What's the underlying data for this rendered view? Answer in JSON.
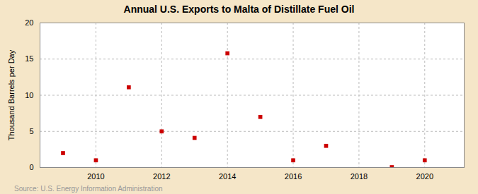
{
  "chart_data": {
    "type": "scatter",
    "title": "Annual U.S. Exports to Malta of Distillate Fuel Oil",
    "ylabel": "Thousand Barrels per Day",
    "annotations": [
      "Source: U.S. Energy Information Administration"
    ],
    "x": [
      2009,
      2010,
      2011,
      2012,
      2013,
      2014,
      2015,
      2016,
      2017,
      2019,
      2020
    ],
    "values": [
      2.0,
      1.0,
      11.1,
      5.0,
      4.1,
      15.8,
      7.0,
      1.0,
      3.0,
      0.05,
      1.0
    ],
    "color": "#cc0000",
    "marker": "square",
    "xlim": [
      2008.3,
      2021.2
    ],
    "ylim": [
      0,
      20
    ],
    "xticks": [
      2010,
      2012,
      2014,
      2016,
      2018,
      2020
    ],
    "yticks": [
      0,
      5,
      10,
      15,
      20
    ],
    "grid": true
  }
}
